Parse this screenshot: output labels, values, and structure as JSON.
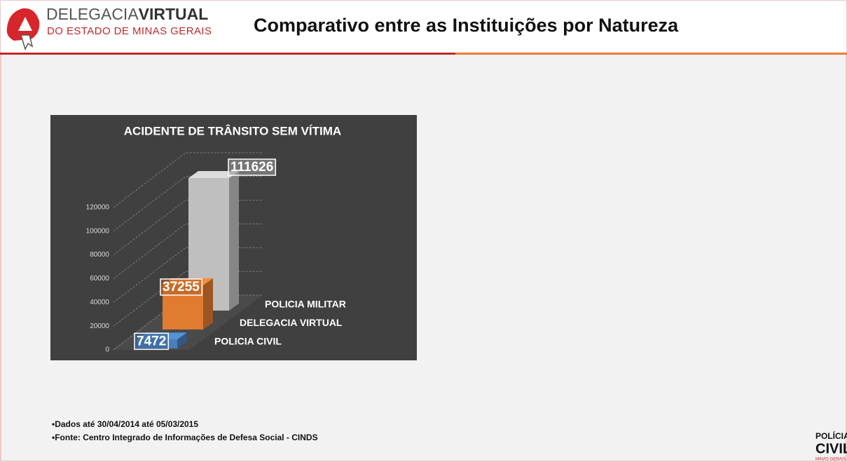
{
  "header": {
    "logo_top": "DELEGACIA",
    "logo_top_bold": "VIRTUAL",
    "logo_bottom": "DO ESTADO DE MINAS GERAIS",
    "title": "Comparativo entre as Instituições por Natureza"
  },
  "chart_data": {
    "type": "bar",
    "title": "ACIDENTE DE TRÂNSITO SEM VÍTIMA",
    "categories": [
      "POLICIA CIVIL",
      "DELEGACIA VIRTUAL",
      "POLICIA MILITAR"
    ],
    "values": [
      7472,
      37255,
      111626
    ],
    "colors": [
      "#4a7ebb",
      "#e07b30",
      "#bfbfbf"
    ],
    "ylim": [
      0,
      140000
    ],
    "yticks": [
      0,
      20000,
      40000,
      60000,
      80000,
      100000,
      120000
    ],
    "grid": true
  },
  "footer": {
    "notes": [
      "•Dados  até 30/04/2014 até 05/03/2015",
      "•Fonte: Centro  Integrado de Informações de Defesa Social - CINDS"
    ],
    "logo": [
      "POLÍCIA",
      "CIVIL",
      "MINAS GERAIS"
    ]
  }
}
